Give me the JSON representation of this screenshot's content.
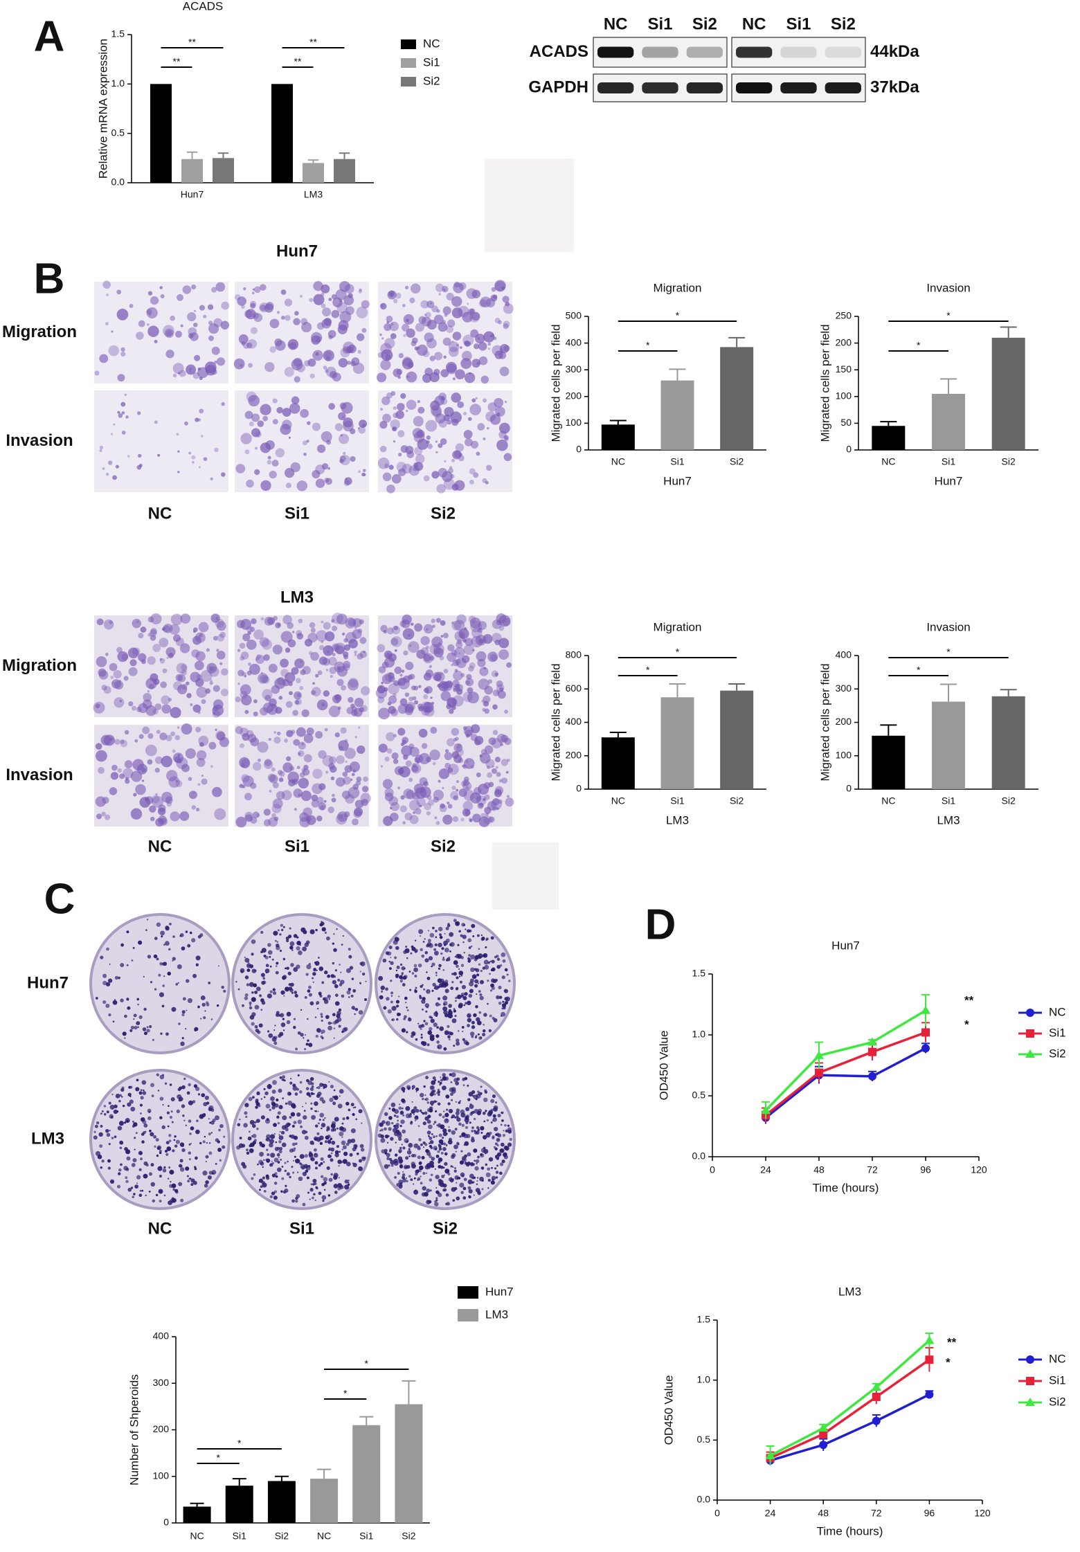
{
  "panels": [
    "A",
    "B",
    "C",
    "D"
  ],
  "blot": {
    "lanes": [
      "NC",
      "Si1",
      "Si2",
      "NC",
      "Si1",
      "Si2"
    ],
    "proteins": [
      "ACADS",
      "GAPDH"
    ],
    "sizes": [
      "44kDa",
      "37kDa"
    ]
  },
  "transwell": [
    {
      "title": "Hun7",
      "rows": [
        "Migration",
        "Invasion"
      ],
      "columns": [
        "NC",
        "Si1",
        "Si2"
      ]
    },
    {
      "title": "LM3",
      "rows": [
        "Migration",
        "Invasion"
      ],
      "columns": [
        "NC",
        "Si1",
        "Si2"
      ]
    }
  ],
  "colony": {
    "rows": [
      "Hun7",
      "LM3"
    ],
    "columns": [
      "NC",
      "Si1",
      "Si2"
    ]
  },
  "chart_data": [
    {
      "type": "bar",
      "title": "ACADS",
      "y_label": "Relative mRNA expression",
      "categories": [
        "Hun7",
        "LM3"
      ],
      "series": [
        {
          "name": "NC",
          "color": "#000000",
          "values": [
            1,
            1
          ]
        },
        {
          "name": "Si1",
          "color": "#a0a0a0",
          "values": [
            0.24,
            0.2
          ],
          "errors": [
            0.07,
            0.03
          ]
        },
        {
          "name": "Si2",
          "color": "#777777",
          "values": [
            0.25,
            0.24
          ],
          "errors": [
            0.05,
            0.06
          ]
        }
      ],
      "ylim": [
        0,
        1.5
      ],
      "yticks": [
        {
          "value": 0,
          "label": "0.0"
        },
        0.5,
        {
          "value": 1,
          "label": "1.0"
        },
        1.5
      ],
      "annotations": [
        "**",
        "**",
        "**",
        "**"
      ],
      "legend": "right"
    },
    {
      "type": "bar",
      "title": "Migration",
      "x_label": "Hun7",
      "y_label": "Migrated cells per field",
      "categories": [
        "NC",
        "Si1",
        "Si2"
      ],
      "values": [
        95,
        260,
        385
      ],
      "errors": [
        15,
        42,
        35
      ],
      "colors": [
        "#000000",
        "#999999",
        "#666666"
      ],
      "ylim": [
        0,
        500
      ],
      "yticks": [
        0,
        100,
        200,
        300,
        400,
        500
      ],
      "annotations": [
        "*",
        "*"
      ]
    },
    {
      "type": "bar",
      "title": "Invasion",
      "x_label": "Hun7",
      "y_label": "Migrated cells per field",
      "categories": [
        "NC",
        "Si1",
        "Si2"
      ],
      "values": [
        45,
        105,
        210
      ],
      "errors": [
        8,
        28,
        20
      ],
      "colors": [
        "#000000",
        "#999999",
        "#666666"
      ],
      "ylim": [
        0,
        250
      ],
      "yticks": [
        0,
        50,
        100,
        150,
        200,
        250
      ],
      "annotations": [
        "*",
        "*"
      ]
    },
    {
      "type": "bar",
      "title": "Migration",
      "x_label": "LM3",
      "y_label": "Migrated cells per field",
      "categories": [
        "NC",
        "Si1",
        "Si2"
      ],
      "values": [
        310,
        550,
        590
      ],
      "errors": [
        30,
        80,
        40
      ],
      "colors": [
        "#000000",
        "#999999",
        "#666666"
      ],
      "ylim": [
        0,
        800
      ],
      "yticks": [
        0,
        200,
        400,
        600,
        800
      ],
      "annotations": [
        "*",
        "*"
      ]
    },
    {
      "type": "bar",
      "title": "Invasion",
      "x_label": "LM3",
      "y_label": "Migrated cells per field",
      "categories": [
        "NC",
        "Si1",
        "Si2"
      ],
      "values": [
        160,
        262,
        278
      ],
      "errors": [
        32,
        52,
        20
      ],
      "colors": [
        "#000000",
        "#999999",
        "#666666"
      ],
      "ylim": [
        0,
        400
      ],
      "yticks": [
        0,
        100,
        200,
        300,
        400
      ],
      "annotations": [
        "*",
        "*"
      ]
    },
    {
      "type": "bar",
      "y_label": "Number of Shperoids",
      "categories": [
        "NC",
        "Si1",
        "Si2",
        "NC",
        "Si1",
        "Si2"
      ],
      "series": [
        {
          "name": "Hun7",
          "color": "#000000",
          "values": [
            35,
            80,
            90,
            null,
            null,
            null
          ],
          "errors": [
            7,
            15,
            10,
            null,
            null,
            null
          ]
        },
        {
          "name": "LM3",
          "color": "#999999",
          "values": [
            null,
            null,
            null,
            95,
            210,
            255
          ],
          "errors": [
            null,
            null,
            null,
            20,
            18,
            50
          ]
        }
      ],
      "ylim": [
        0,
        400
      ],
      "yticks": [
        0,
        100,
        200,
        300,
        400
      ],
      "annotations": [
        "*",
        "*",
        "*",
        "*"
      ],
      "legend": "top"
    },
    {
      "type": "line",
      "title": "Hun7",
      "x_label": "Time (hours)",
      "y_label": "OD450 Value",
      "x": [
        24,
        48,
        72,
        96
      ],
      "series": [
        {
          "name": "NC",
          "color": "#1f1fd0",
          "marker": "circle",
          "values": [
            0.32,
            0.67,
            0.66,
            0.89
          ],
          "errors": [
            0.05,
            0.07,
            0.04,
            0.04
          ]
        },
        {
          "name": "Si1",
          "color": "#e8213a",
          "marker": "square",
          "values": [
            0.34,
            0.69,
            0.86,
            1.02
          ],
          "errors": [
            0.06,
            0.08,
            0.07,
            0.08
          ]
        },
        {
          "name": "Si2",
          "color": "#3ee83e",
          "marker": "triangle",
          "values": [
            0.38,
            0.83,
            0.94,
            1.2
          ],
          "errors": [
            0.07,
            0.11,
            0.02,
            0.13
          ]
        }
      ],
      "xlim": [
        0,
        120
      ],
      "xticks": [
        0,
        24,
        48,
        72,
        96,
        120
      ],
      "ylim": [
        0,
        1.5
      ],
      "yticks": [
        {
          "value": 0,
          "label": "0.0"
        },
        0.5,
        {
          "value": 1,
          "label": "1.0"
        },
        1.5
      ],
      "annotations": [
        "**",
        "*"
      ],
      "legend": "right"
    },
    {
      "type": "line",
      "title": "LM3",
      "x_label": "Time (hours)",
      "y_label": "OD450 Value",
      "x": [
        24,
        48,
        72,
        96
      ],
      "series": [
        {
          "name": "NC",
          "color": "#1f1fd0",
          "marker": "circle",
          "values": [
            0.33,
            0.46,
            0.66,
            0.88
          ],
          "errors": [
            0.04,
            0.05,
            0.05,
            0.03
          ]
        },
        {
          "name": "Si1",
          "color": "#e8213a",
          "marker": "square",
          "values": [
            0.35,
            0.55,
            0.86,
            1.17
          ],
          "errors": [
            0.05,
            0.04,
            0.06,
            0.1
          ]
        },
        {
          "name": "Si2",
          "color": "#3ee83e",
          "marker": "triangle",
          "values": [
            0.37,
            0.6,
            0.94,
            1.33
          ],
          "errors": [
            0.08,
            0.03,
            0.03,
            0.06
          ]
        }
      ],
      "xlim": [
        0,
        120
      ],
      "xticks": [
        0,
        24,
        48,
        72,
        96,
        120
      ],
      "ylim": [
        0,
        1.5
      ],
      "yticks": [
        {
          "value": 0,
          "label": "0.0"
        },
        0.5,
        {
          "value": 1,
          "label": "1.0"
        },
        1.5
      ],
      "annotations": [
        "**",
        "*"
      ],
      "legend": "right"
    }
  ]
}
